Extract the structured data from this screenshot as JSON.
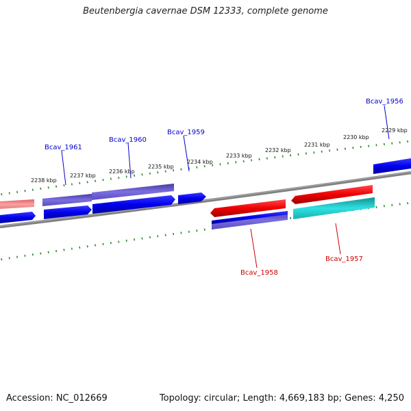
{
  "title": "Beutenbergia cavernae DSM 12333, complete genome",
  "footer": {
    "accession": "Accession: NC_012669",
    "stats": "Topology: circular; Length: 4,669,183 bp; Genes: 4,250"
  },
  "scale": {
    "ticks": [
      "2238 kbp",
      "2237 kbp",
      "2236 kbp",
      "2235 kbp",
      "2234 kbp",
      "2233 kbp",
      "2232 kbp",
      "2231 kbp",
      "2230 kbp",
      "2229 kbp"
    ]
  },
  "genes": [
    {
      "label": "Bcav_1961",
      "color": "#0000cc"
    },
    {
      "label": "Bcav_1960",
      "color": "#0000cc"
    },
    {
      "label": "Bcav_1959",
      "color": "#0000cc"
    },
    {
      "label": "Bcav_1956",
      "color": "#0000cc"
    },
    {
      "label": "Bcav_1958",
      "color": "#cc0000"
    },
    {
      "label": "Bcav_1957",
      "color": "#cc0000"
    }
  ],
  "colors": {
    "backbone": "#808080",
    "forward_cds": "#0000ee",
    "forward_gene": "#6a5acd",
    "reverse_cds": "#ee0000",
    "reverse_gene": "#20c0c0",
    "partial_gene": "#f08080",
    "tick": "#2e8b2e"
  }
}
